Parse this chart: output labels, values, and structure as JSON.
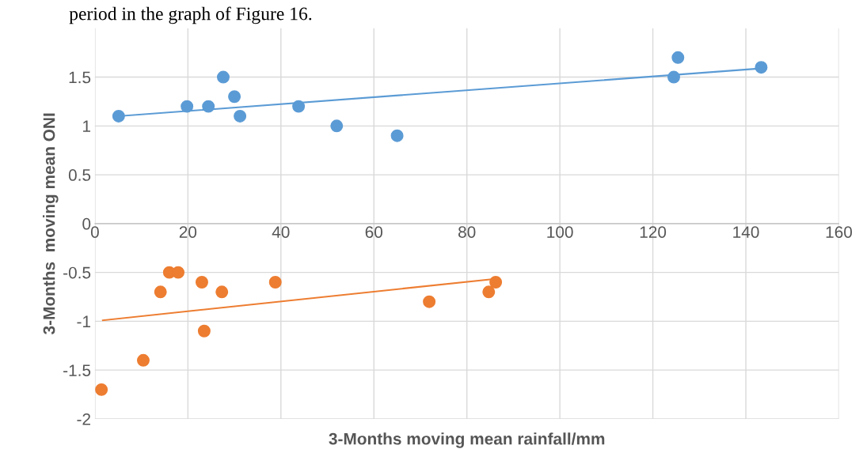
{
  "chart_data": {
    "type": "scatter",
    "xlabel": "3-Months moving mean rainfall/mm",
    "ylabel": "3-Months  moving mean ONI",
    "annotations": [
      "period in the graph of Figure 16."
    ],
    "xlim": [
      0,
      160
    ],
    "xticks": [
      0,
      20,
      40,
      60,
      80,
      100,
      120,
      140,
      160
    ],
    "ylim": [
      -2,
      2
    ],
    "yticks": [
      -2,
      -1.5,
      -1,
      -0.5,
      0,
      0.5,
      1,
      1.5
    ],
    "grid": true,
    "marker": "circle",
    "series": [
      {
        "color": "#5b9bd5",
        "x": [
          5.1,
          19.8,
          24.4,
          27.6,
          30,
          31.2,
          43.8,
          52,
          65,
          124.5,
          125.4,
          143.3
        ],
        "values": [
          1.1,
          1.2,
          1.2,
          1.5,
          1.3,
          1.1,
          1.2,
          1.0,
          0.9,
          1.5,
          1.7,
          1.6
        ]
      },
      {
        "color": "#ed7d31",
        "x": [
          1.4,
          10.4,
          14.1,
          16,
          17.9,
          23,
          23.5,
          27.3,
          38.8,
          71.9,
          84.7,
          86.2
        ],
        "values": [
          -1.7,
          -1.4,
          -0.7,
          -0.5,
          -0.5,
          -0.6,
          -1.1,
          -0.7,
          -0.6,
          -0.8,
          -0.7,
          -0.6
        ]
      },
      {
        "type": "line",
        "marker": "none",
        "color": "#5b9bd5",
        "x": [
          5,
          143.5
        ],
        "values": [
          1.1,
          1.59
        ]
      },
      {
        "type": "line",
        "marker": "none",
        "color": "#ed7d31",
        "x": [
          1.7,
          85.2
        ],
        "values": [
          -0.99,
          -0.57
        ]
      }
    ]
  }
}
